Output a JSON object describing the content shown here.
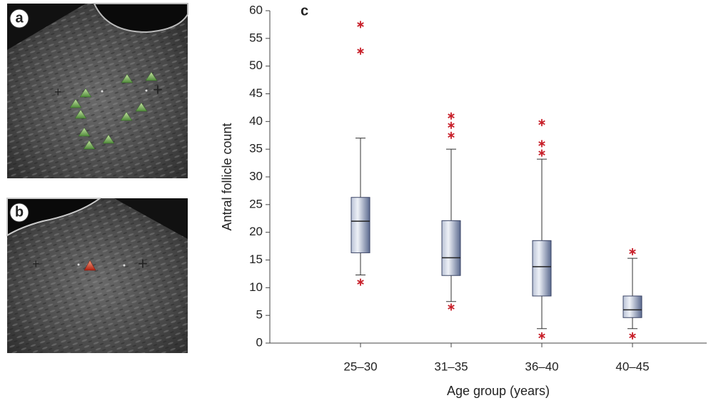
{
  "panel_labels": [
    "a",
    "b"
  ],
  "chart_data": {
    "type": "box",
    "panel_label": "c",
    "x_label": "Age group (years)",
    "y_label": "Antral follicle count",
    "categories": [
      "25–30",
      "31–35",
      "36–40",
      "40–45"
    ],
    "boxes": [
      {
        "whisker_low": 12.3,
        "q1": 16.3,
        "median": 22,
        "q3": 26.3,
        "whisker_high": 37,
        "outliers": [
          11,
          52.7,
          57.5
        ]
      },
      {
        "whisker_low": 7.5,
        "q1": 12.2,
        "median": 15.4,
        "q3": 22.1,
        "whisker_high": 35,
        "outliers": [
          6.5,
          37.5,
          39.3,
          41
        ]
      },
      {
        "whisker_low": 2.6,
        "q1": 8.5,
        "median": 13.8,
        "q3": 18.5,
        "whisker_high": 33.2,
        "outliers": [
          1.3,
          34.3,
          36,
          39.8
        ]
      },
      {
        "whisker_low": 2.6,
        "q1": 4.6,
        "median": 6,
        "q3": 8.5,
        "whisker_high": 15.3,
        "outliers": [
          1.3,
          16.5
        ]
      }
    ],
    "box_color": "#7d8cae",
    "outlier_color": "#c8202a",
    "ylim": [
      0,
      60
    ],
    "yticks": [
      0,
      5,
      10,
      15,
      20,
      25,
      30,
      35,
      40,
      45,
      50,
      55,
      60
    ]
  }
}
